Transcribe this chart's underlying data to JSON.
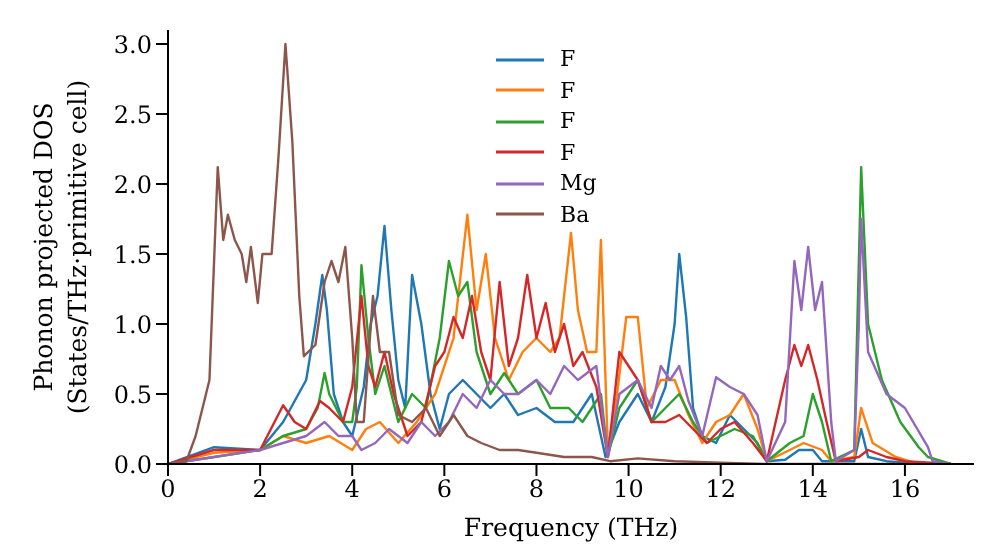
{
  "chart_data": {
    "type": "line",
    "xlabel": "Frequency (THz)",
    "ylabel": "Phonon projected DOS\n(States/THz·primitive cell)",
    "xlim": [
      0,
      17.5
    ],
    "ylim": [
      0,
      3.1
    ],
    "xticks": [
      0,
      2,
      4,
      6,
      8,
      10,
      12,
      14,
      16
    ],
    "yticks": [
      {
        "value": 0,
        "label": "0.0"
      },
      0.5,
      {
        "value": 1,
        "label": "1.0"
      },
      1.5,
      {
        "value": 2,
        "label": "2.0"
      },
      2.5,
      {
        "value": 3,
        "label": "3.0"
      }
    ],
    "grid": false,
    "legend": "top",
    "marker": "none",
    "line_style": "solid",
    "series": [
      {
        "name": "F",
        "color": "#1f77b4",
        "x": [
          0,
          1,
          2,
          2.5,
          3.0,
          3.2,
          3.35,
          3.45,
          3.6,
          3.8,
          4.0,
          4.25,
          4.4,
          4.55,
          4.7,
          4.85,
          5.0,
          5.15,
          5.3,
          5.5,
          5.7,
          5.9,
          6.1,
          6.4,
          6.7,
          7.0,
          7.3,
          7.6,
          8.0,
          8.4,
          8.8,
          9.2,
          9.5,
          9.8,
          10.2,
          10.5,
          10.8,
          11.0,
          11.1,
          11.25,
          11.4,
          11.6,
          11.9,
          12.2,
          12.5,
          12.8,
          13.0,
          13.4,
          13.7,
          14.0,
          14.2,
          14.9,
          15.05,
          15.2,
          15.6,
          16.0,
          17
        ],
        "values": [
          0,
          0.12,
          0.1,
          0.3,
          0.6,
          1.0,
          1.35,
          1.1,
          0.5,
          0.3,
          0.2,
          0.55,
          1.0,
          1.2,
          1.7,
          1.1,
          0.6,
          0.4,
          1.35,
          1.0,
          0.5,
          0.25,
          0.5,
          0.6,
          0.5,
          0.4,
          0.5,
          0.35,
          0.4,
          0.3,
          0.3,
          0.5,
          0.05,
          0.3,
          0.5,
          0.3,
          0.55,
          1.0,
          1.5,
          1.05,
          0.4,
          0.2,
          0.15,
          0.35,
          0.25,
          0.15,
          0.02,
          0.03,
          0.1,
          0.1,
          0.02,
          0.02,
          0.25,
          0.05,
          0.02,
          0.01,
          0
        ]
      },
      {
        "name": "F",
        "color": "#ff7f0e",
        "x": [
          0,
          1,
          2,
          2.5,
          3,
          3.5,
          4,
          4.3,
          4.6,
          5,
          5.4,
          5.8,
          6.2,
          6.5,
          6.7,
          6.9,
          7.1,
          7.4,
          7.7,
          8.0,
          8.3,
          8.5,
          8.75,
          8.9,
          9.1,
          9.3,
          9.4,
          9.55,
          9.75,
          9.95,
          10.2,
          10.4,
          10.7,
          11.0,
          11.3,
          11.6,
          11.9,
          12.2,
          12.5,
          12.8,
          13.0,
          13.5,
          13.8,
          14.2,
          14.4,
          14.9,
          15.05,
          15.3,
          15.8,
          16.2,
          17
        ],
        "values": [
          0,
          0.08,
          0.1,
          0.2,
          0.15,
          0.2,
          0.1,
          0.25,
          0.3,
          0.15,
          0.3,
          0.5,
          0.9,
          1.78,
          1.1,
          1.5,
          0.9,
          0.6,
          0.8,
          0.9,
          0.8,
          0.9,
          1.65,
          1.1,
          0.8,
          0.8,
          1.6,
          0.1,
          0.5,
          1.05,
          1.05,
          0.4,
          0.6,
          0.6,
          0.35,
          0.15,
          0.3,
          0.35,
          0.5,
          0.25,
          0.02,
          0.1,
          0.15,
          0.1,
          0.02,
          0.05,
          0.4,
          0.15,
          0.05,
          0.01,
          0
        ]
      },
      {
        "name": "F",
        "color": "#2ca02c",
        "x": [
          0,
          1,
          2,
          2.5,
          3,
          3.25,
          3.4,
          3.5,
          3.8,
          4.0,
          4.1,
          4.2,
          4.35,
          4.5,
          4.7,
          5.0,
          5.3,
          5.6,
          5.9,
          6.1,
          6.3,
          6.5,
          6.7,
          7.0,
          7.3,
          7.6,
          8.0,
          8.3,
          8.7,
          9.0,
          9.4,
          9.55,
          9.8,
          10.2,
          10.5,
          10.8,
          11.1,
          11.4,
          11.7,
          12.0,
          12.3,
          12.7,
          13.0,
          13.5,
          13.8,
          14.0,
          14.2,
          14.4,
          14.9,
          15.05,
          15.2,
          15.5,
          15.9,
          16.3,
          16.5,
          17
        ],
        "values": [
          0,
          0.05,
          0.1,
          0.2,
          0.25,
          0.4,
          0.65,
          0.5,
          0.3,
          0.3,
          0.55,
          1.42,
          0.9,
          0.5,
          0.7,
          0.3,
          0.5,
          0.4,
          0.9,
          1.45,
          1.2,
          1.3,
          0.8,
          0.5,
          0.65,
          0.5,
          0.6,
          0.4,
          0.4,
          0.3,
          0.5,
          0.05,
          0.4,
          0.6,
          0.3,
          0.4,
          0.5,
          0.3,
          0.15,
          0.2,
          0.25,
          0.2,
          0.02,
          0.15,
          0.2,
          0.5,
          0.3,
          0.02,
          0.1,
          2.12,
          1.0,
          0.6,
          0.3,
          0.12,
          0.05,
          0
        ]
      },
      {
        "name": "F",
        "color": "#d62728",
        "x": [
          0,
          1,
          2,
          2.5,
          2.75,
          3,
          3.3,
          3.5,
          3.8,
          4.0,
          4.2,
          4.35,
          4.5,
          4.7,
          4.9,
          5.2,
          5.5,
          5.8,
          6.0,
          6.2,
          6.4,
          6.6,
          6.8,
          7.0,
          7.2,
          7.4,
          7.6,
          7.8,
          8.0,
          8.2,
          8.4,
          8.6,
          8.8,
          9.0,
          9.3,
          9.55,
          9.8,
          10.2,
          10.5,
          10.8,
          11.1,
          11.4,
          11.7,
          12.0,
          12.3,
          12.7,
          13.0,
          13.4,
          13.6,
          13.75,
          13.9,
          14.1,
          14.3,
          14.5,
          15.0,
          15.2,
          15.6,
          16.0,
          17
        ],
        "values": [
          0,
          0.1,
          0.1,
          0.42,
          0.3,
          0.25,
          0.45,
          0.4,
          0.3,
          0.55,
          1.2,
          0.7,
          0.55,
          0.8,
          0.5,
          0.2,
          0.3,
          0.7,
          0.8,
          1.05,
          0.9,
          1.2,
          0.8,
          0.6,
          1.3,
          0.7,
          0.9,
          1.35,
          0.9,
          1.15,
          0.8,
          1.0,
          0.7,
          0.8,
          0.55,
          0.05,
          0.8,
          0.6,
          0.3,
          0.3,
          0.35,
          0.25,
          0.15,
          0.25,
          0.3,
          0.15,
          0.02,
          0.6,
          0.85,
          0.7,
          0.85,
          0.6,
          0.3,
          0.02,
          0.05,
          0.1,
          0.05,
          0.02,
          0
        ]
      },
      {
        "name": "Mg",
        "color": "#9467bd",
        "x": [
          0,
          1,
          2,
          2.5,
          3,
          3.4,
          3.7,
          4.0,
          4.2,
          4.5,
          4.8,
          5.2,
          5.5,
          5.8,
          6.1,
          6.4,
          6.7,
          7.0,
          7.3,
          7.6,
          8.0,
          8.3,
          8.6,
          8.9,
          9.3,
          9.55,
          9.8,
          10.2,
          10.5,
          10.7,
          10.9,
          11.1,
          11.3,
          11.6,
          11.9,
          12.2,
          12.5,
          12.8,
          13.0,
          13.4,
          13.6,
          13.75,
          13.9,
          14.05,
          14.2,
          14.4,
          14.5,
          14.9,
          15.0,
          15.05,
          15.2,
          15.6,
          16.0,
          16.5,
          16.6,
          17
        ],
        "values": [
          0,
          0.05,
          0.1,
          0.15,
          0.2,
          0.3,
          0.2,
          0.2,
          0.1,
          0.15,
          0.25,
          0.15,
          0.3,
          0.2,
          0.3,
          0.5,
          0.4,
          0.6,
          0.5,
          0.5,
          0.6,
          0.5,
          0.7,
          0.6,
          0.7,
          0.05,
          0.5,
          0.6,
          0.4,
          0.7,
          0.6,
          0.7,
          0.45,
          0.2,
          0.62,
          0.55,
          0.5,
          0.35,
          0.02,
          0.3,
          1.45,
          1.1,
          1.55,
          1.1,
          1.3,
          0.3,
          0.02,
          0.1,
          1.0,
          1.75,
          0.8,
          0.5,
          0.4,
          0.12,
          0.02,
          0
        ]
      },
      {
        "name": "Ba",
        "color": "#8c564b",
        "x": [
          0,
          0.4,
          0.6,
          0.9,
          1.08,
          1.2,
          1.3,
          1.45,
          1.6,
          1.7,
          1.8,
          1.95,
          2.05,
          2.25,
          2.4,
          2.55,
          2.7,
          2.85,
          2.95,
          3.2,
          3.4,
          3.55,
          3.7,
          3.85,
          4.0,
          4.1,
          4.25,
          4.45,
          4.6,
          4.8,
          5.0,
          5.3,
          5.6,
          5.9,
          6.2,
          6.5,
          6.8,
          7.2,
          7.6,
          8.0,
          8.6,
          9.2,
          9.6,
          10.2,
          11,
          12,
          13,
          17
        ],
        "values": [
          0,
          0.02,
          0.2,
          0.6,
          2.12,
          1.6,
          1.78,
          1.6,
          1.5,
          1.3,
          1.55,
          1.15,
          1.5,
          1.5,
          2.2,
          3.0,
          2.3,
          1.2,
          0.77,
          0.85,
          1.3,
          1.45,
          1.3,
          1.55,
          0.9,
          0.3,
          0.3,
          1.2,
          0.8,
          0.8,
          0.35,
          0.3,
          0.4,
          0.2,
          0.35,
          0.2,
          0.15,
          0.1,
          0.1,
          0.08,
          0.05,
          0.05,
          0.02,
          0.04,
          0.02,
          0.01,
          0,
          0
        ]
      }
    ]
  }
}
